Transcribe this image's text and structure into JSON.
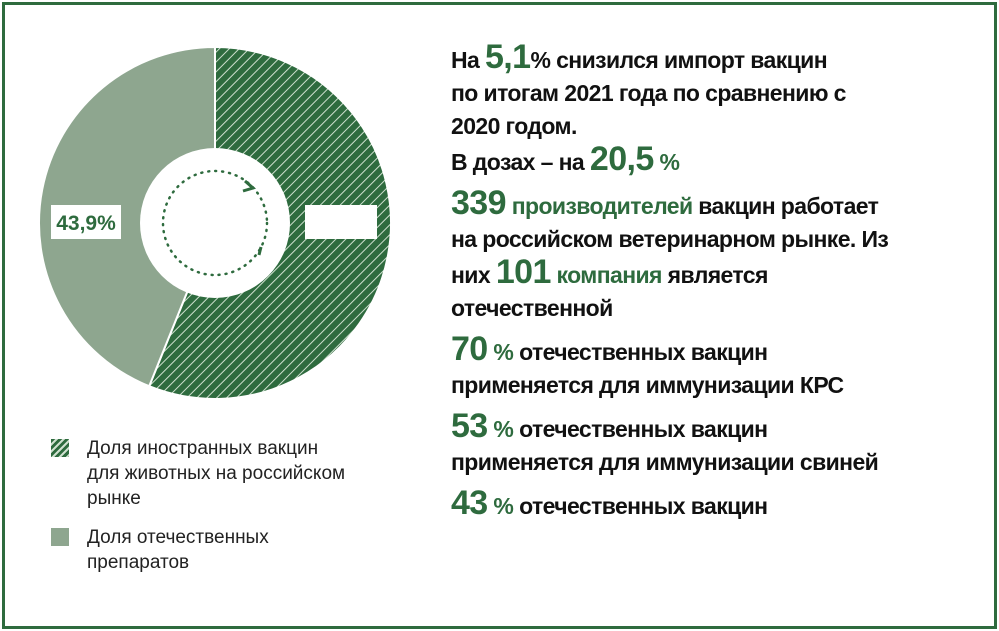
{
  "chart_data": {
    "type": "pie",
    "variant": "donut",
    "slices": [
      {
        "name": "Доля иностранных вакцин для животных на российском рынке",
        "value": 56.1,
        "color": "#2e6b3e",
        "pattern": "hatch"
      },
      {
        "name": "Доля отечественных препаратов",
        "value": 43.9,
        "color": "#8ea68f",
        "pattern": "solid"
      }
    ],
    "labels": [
      {
        "slice": 1,
        "text": "43,9%"
      }
    ]
  },
  "legend": [
    {
      "label": "Доля иностранных вакцин для животных на российском рынке"
    },
    {
      "label": "Доля отечественных препаратов"
    }
  ],
  "facts": {
    "f1": {
      "p1": "На ",
      "n1": "5,1",
      "p2": "% снизился импорт вакцин по итогам 2021 года по сравнению с 2020 годом."
    },
    "f1b": {
      "p1": "В дозах – на ",
      "n1": "20,5",
      "p2": " %"
    },
    "f2": {
      "n1": "339",
      "h1": " производителей",
      "p1": " вакцин работает на российском ветеринарном рынке. Из них ",
      "n2": "101",
      "h2": " компания",
      "p2": " является отечественной"
    },
    "f3": {
      "n1": "70",
      "h1": " %",
      "p1": " отечественных вакцин применяется для иммунизации КРС"
    },
    "f4": {
      "n1": "53",
      "h1": " %",
      "p1": " отечественных вакцин применяется для иммунизации свиней"
    },
    "f5": {
      "n1": "43",
      "h1": " %",
      "p1": " отечественных вакцин"
    }
  },
  "colors": {
    "frame": "#2e6b3e",
    "accent": "#2e6b3e",
    "domestic": "#8ea68f"
  }
}
